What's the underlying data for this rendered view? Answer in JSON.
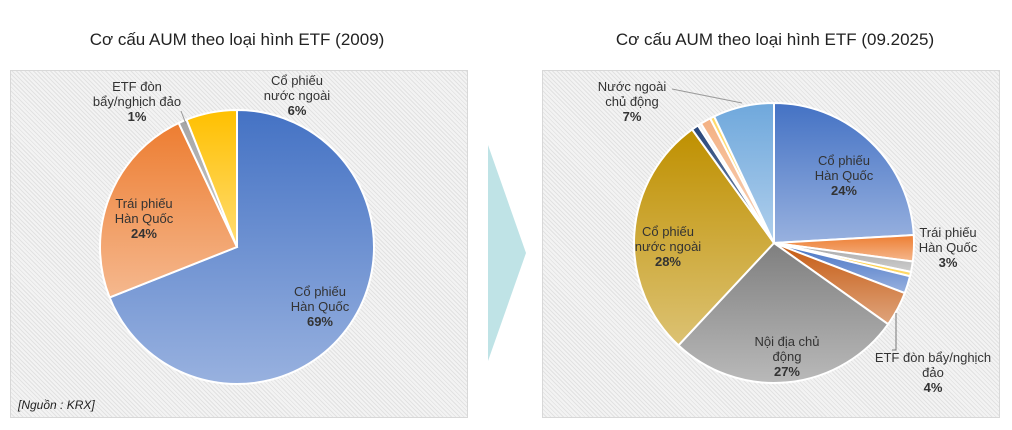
{
  "chart_data": [
    {
      "type": "pie",
      "title": "Cơ cấu AUM theo loại hình ETF (2009)",
      "start": "top",
      "direction": "clockwise",
      "slices": [
        {
          "name": "Cổ phiếu Hàn Quốc",
          "value": 69,
          "label": "69%",
          "color": "#4472c4"
        },
        {
          "name": "Trái phiếu Hàn Quốc",
          "value": 24,
          "label": "24%",
          "color": "#ed7d31"
        },
        {
          "name": "ETF đòn bẩy/nghịch đảo",
          "value": 1,
          "label": "1%",
          "color": "#a5a5a5"
        },
        {
          "name": "Cổ phiếu nước ngoài",
          "value": 6,
          "label": "6%",
          "color": "#ffc000"
        }
      ],
      "source": "[Nguồn : KRX]"
    },
    {
      "type": "pie",
      "title": "Cơ cấu AUM theo loại hình ETF (09.2025)",
      "start": "top",
      "direction": "clockwise",
      "slices": [
        {
          "name": "Cổ phiếu Hàn Quốc",
          "value": 24,
          "label": "24%",
          "color": "#4472c4"
        },
        {
          "name": "Trái phiếu Hàn Quốc",
          "value": 3,
          "label": "3%",
          "color": "#ed7d31"
        },
        {
          "name": "",
          "value": 1.2,
          "label": "",
          "color": "#a5a5a5"
        },
        {
          "name": "",
          "value": 0.5,
          "label": "",
          "color": "#ffc000"
        },
        {
          "name": "",
          "value": 2,
          "label": "",
          "color": "#4472c4"
        },
        {
          "name": "ETF đòn bẩy/nghịch đảo",
          "value": 4,
          "label": "4%",
          "color": "#c55a11"
        },
        {
          "name": "Nội địa chủ động",
          "value": 27,
          "label": "27%",
          "color": "#7f7f7f"
        },
        {
          "name": "Cổ phiếu nước ngoài",
          "value": 28,
          "label": "28%",
          "color": "#bf9000"
        },
        {
          "name": "",
          "value": 0.8,
          "label": "",
          "color": "#264478"
        },
        {
          "name": "",
          "value": 0.4,
          "label": "",
          "color": "#f2f2f2"
        },
        {
          "name": "",
          "value": 1.2,
          "label": "",
          "color": "#f4b183"
        },
        {
          "name": "",
          "value": 0.5,
          "label": "",
          "color": "#ffd966"
        },
        {
          "name": "Nước ngoài chủ động",
          "value": 7,
          "label": "7%",
          "color": "#6fa8dc"
        }
      ]
    }
  ],
  "labels_left": [
    {
      "l1": "Cổ phiếu",
      "l2": "Hàn Quốc",
      "p": "69%"
    },
    {
      "l1": "Trái phiếu",
      "l2": "Hàn Quốc",
      "p": "24%"
    },
    {
      "l1": "ETF đòn",
      "l2": "bẩy/nghịch đảo",
      "p": "1%"
    },
    {
      "l1": "Cổ phiếu",
      "l2": "nước ngoài",
      "p": "6%"
    }
  ],
  "labels_right": [
    {
      "l1": "Cổ phiếu",
      "l2": "Hàn Quốc",
      "p": "24%"
    },
    {
      "l1": "Trái phiếu",
      "l2": "Hàn Quốc",
      "p": "3%"
    },
    {
      "l1": "ETF đòn bẩy/nghịch",
      "l2": "đảo",
      "p": "4%"
    },
    {
      "l1": "Nội địa chủ",
      "l2": "động",
      "p": "27%"
    },
    {
      "l1": "Cổ phiếu",
      "l2": "nước ngoài",
      "p": "28%"
    },
    {
      "l1": "Nước ngoài",
      "l2": "chủ động",
      "p": "7%"
    }
  ],
  "arrow_color": "#bfe3e6"
}
